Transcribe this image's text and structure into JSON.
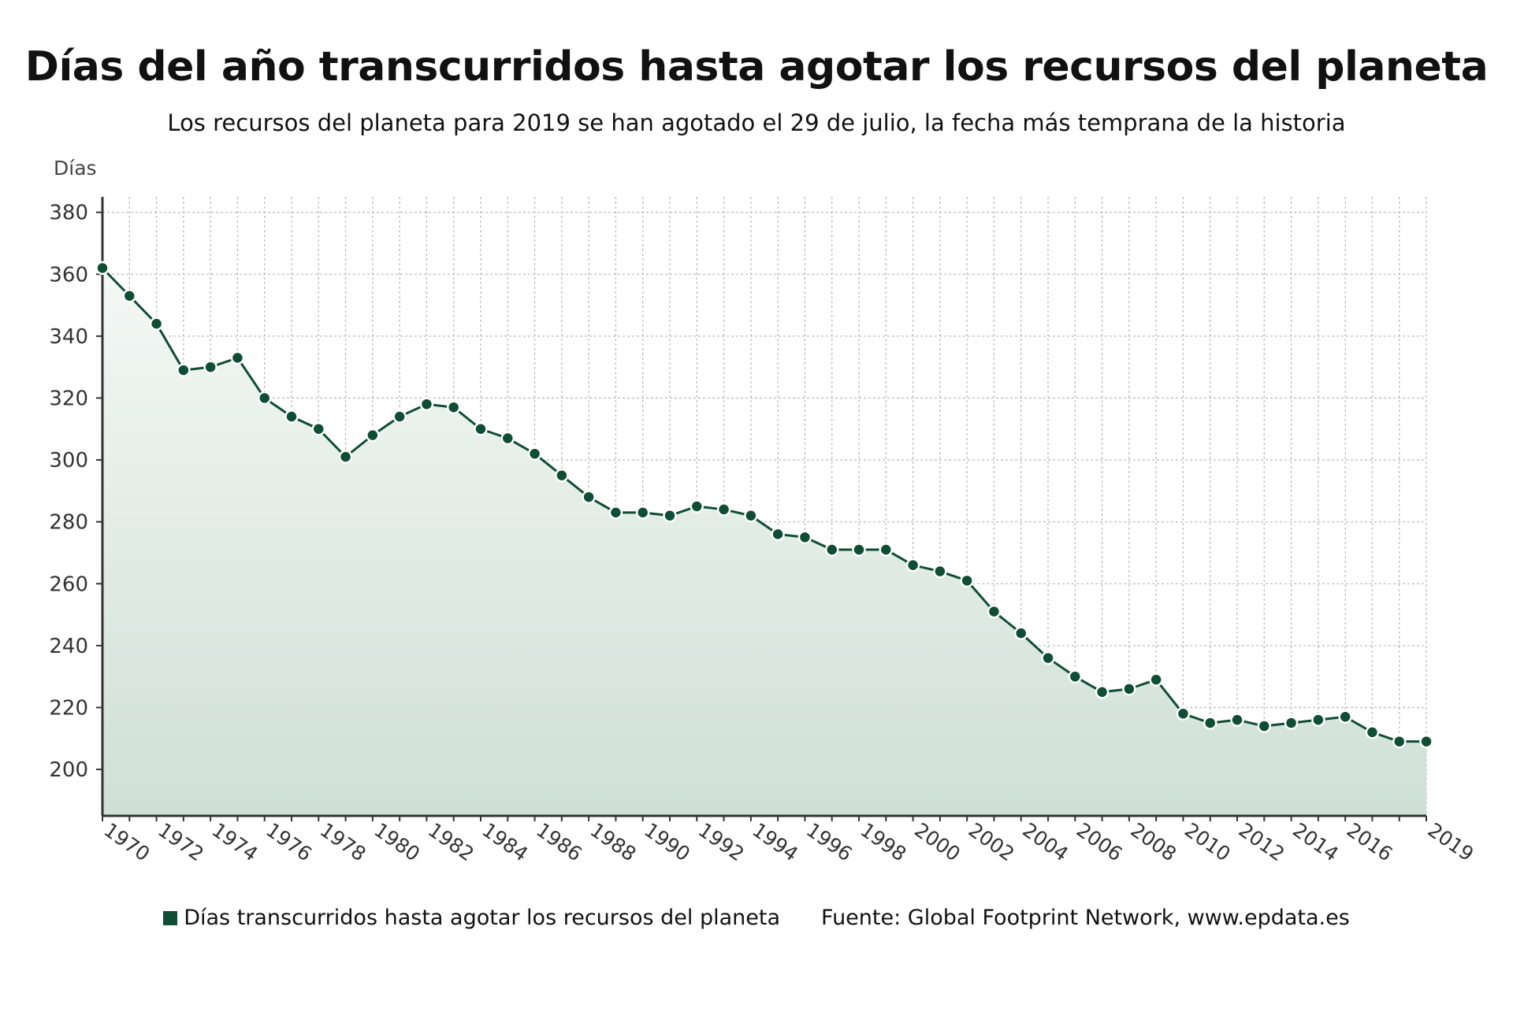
{
  "title": "Días del año transcurridos hasta agotar los recursos del planeta",
  "subtitle": "Los recursos del planeta para 2019 se han agotado el 29 de julio, la fecha más temprana de la historia",
  "legend": {
    "series_label": "Días transcurridos hasta agotar los recursos del planeta",
    "source": "Fuente: Global Footprint Network, www.epdata.es"
  },
  "colors": {
    "line": "#0f4d35",
    "marker": "#0f4d35",
    "marker_stroke": "#ffffff",
    "area_top": "#f4f8f6",
    "area_bottom": "#cfe0d6",
    "grid": "#bdbdbd",
    "axis": "#333333"
  },
  "chart_data": {
    "type": "area",
    "ylabel": "Días",
    "xlabel": "",
    "ylim": [
      185,
      385
    ],
    "yticks": [
      200,
      220,
      240,
      260,
      280,
      300,
      320,
      340,
      360,
      380
    ],
    "xticks": [
      1970,
      1972,
      1974,
      1976,
      1978,
      1980,
      1982,
      1984,
      1986,
      1988,
      1990,
      1992,
      1994,
      1996,
      1998,
      2000,
      2002,
      2004,
      2006,
      2008,
      2010,
      2012,
      2014,
      2016,
      2019
    ],
    "grid": true,
    "legend": "bottom",
    "series": [
      {
        "name": "Días transcurridos hasta agotar los recursos del planeta",
        "x": [
          1970,
          1971,
          1972,
          1973,
          1974,
          1975,
          1976,
          1977,
          1978,
          1979,
          1980,
          1981,
          1982,
          1983,
          1984,
          1985,
          1986,
          1987,
          1988,
          1989,
          1990,
          1991,
          1992,
          1993,
          1994,
          1995,
          1996,
          1997,
          1998,
          1999,
          2000,
          2001,
          2002,
          2003,
          2004,
          2005,
          2006,
          2007,
          2008,
          2009,
          2010,
          2011,
          2012,
          2013,
          2014,
          2015,
          2016,
          2017,
          2018,
          2019
        ],
        "values": [
          362,
          353,
          344,
          329,
          330,
          333,
          320,
          314,
          310,
          301,
          308,
          314,
          318,
          317,
          310,
          307,
          302,
          295,
          288,
          283,
          283,
          282,
          285,
          284,
          282,
          276,
          275,
          271,
          271,
          271,
          266,
          264,
          261,
          251,
          244,
          236,
          230,
          225,
          226,
          229,
          218,
          215,
          216,
          214,
          215,
          216,
          217,
          212,
          209,
          209
        ]
      }
    ]
  }
}
